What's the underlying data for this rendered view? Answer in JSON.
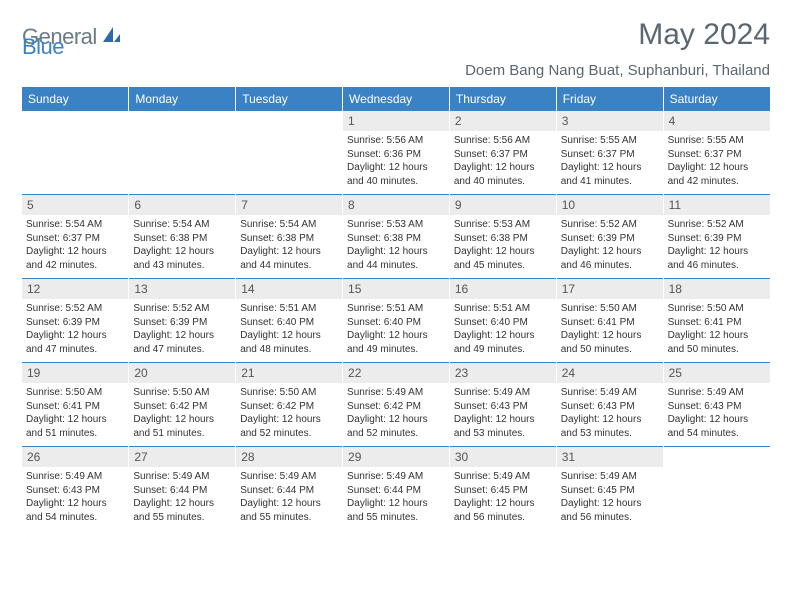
{
  "brand": {
    "part1": "General",
    "part2": "Blue"
  },
  "title": "May 2024",
  "location": "Doem Bang Nang Buat, Suphanburi, Thailand",
  "colors": {
    "header_bg": "#3b82c4",
    "header_text": "#ffffff",
    "daynum_bg": "#ececec",
    "sep_line": "#3b82c4",
    "title_text": "#5a6670",
    "logo_gray": "#6b7a86",
    "logo_blue": "#3b82c4"
  },
  "day_names": [
    "Sunday",
    "Monday",
    "Tuesday",
    "Wednesday",
    "Thursday",
    "Friday",
    "Saturday"
  ],
  "weeks": [
    [
      null,
      null,
      null,
      {
        "n": "1",
        "sr": "5:56 AM",
        "ss": "6:36 PM",
        "dl": "12 hours and 40 minutes."
      },
      {
        "n": "2",
        "sr": "5:56 AM",
        "ss": "6:37 PM",
        "dl": "12 hours and 40 minutes."
      },
      {
        "n": "3",
        "sr": "5:55 AM",
        "ss": "6:37 PM",
        "dl": "12 hours and 41 minutes."
      },
      {
        "n": "4",
        "sr": "5:55 AM",
        "ss": "6:37 PM",
        "dl": "12 hours and 42 minutes."
      }
    ],
    [
      {
        "n": "5",
        "sr": "5:54 AM",
        "ss": "6:37 PM",
        "dl": "12 hours and 42 minutes."
      },
      {
        "n": "6",
        "sr": "5:54 AM",
        "ss": "6:38 PM",
        "dl": "12 hours and 43 minutes."
      },
      {
        "n": "7",
        "sr": "5:54 AM",
        "ss": "6:38 PM",
        "dl": "12 hours and 44 minutes."
      },
      {
        "n": "8",
        "sr": "5:53 AM",
        "ss": "6:38 PM",
        "dl": "12 hours and 44 minutes."
      },
      {
        "n": "9",
        "sr": "5:53 AM",
        "ss": "6:38 PM",
        "dl": "12 hours and 45 minutes."
      },
      {
        "n": "10",
        "sr": "5:52 AM",
        "ss": "6:39 PM",
        "dl": "12 hours and 46 minutes."
      },
      {
        "n": "11",
        "sr": "5:52 AM",
        "ss": "6:39 PM",
        "dl": "12 hours and 46 minutes."
      }
    ],
    [
      {
        "n": "12",
        "sr": "5:52 AM",
        "ss": "6:39 PM",
        "dl": "12 hours and 47 minutes."
      },
      {
        "n": "13",
        "sr": "5:52 AM",
        "ss": "6:39 PM",
        "dl": "12 hours and 47 minutes."
      },
      {
        "n": "14",
        "sr": "5:51 AM",
        "ss": "6:40 PM",
        "dl": "12 hours and 48 minutes."
      },
      {
        "n": "15",
        "sr": "5:51 AM",
        "ss": "6:40 PM",
        "dl": "12 hours and 49 minutes."
      },
      {
        "n": "16",
        "sr": "5:51 AM",
        "ss": "6:40 PM",
        "dl": "12 hours and 49 minutes."
      },
      {
        "n": "17",
        "sr": "5:50 AM",
        "ss": "6:41 PM",
        "dl": "12 hours and 50 minutes."
      },
      {
        "n": "18",
        "sr": "5:50 AM",
        "ss": "6:41 PM",
        "dl": "12 hours and 50 minutes."
      }
    ],
    [
      {
        "n": "19",
        "sr": "5:50 AM",
        "ss": "6:41 PM",
        "dl": "12 hours and 51 minutes."
      },
      {
        "n": "20",
        "sr": "5:50 AM",
        "ss": "6:42 PM",
        "dl": "12 hours and 51 minutes."
      },
      {
        "n": "21",
        "sr": "5:50 AM",
        "ss": "6:42 PM",
        "dl": "12 hours and 52 minutes."
      },
      {
        "n": "22",
        "sr": "5:49 AM",
        "ss": "6:42 PM",
        "dl": "12 hours and 52 minutes."
      },
      {
        "n": "23",
        "sr": "5:49 AM",
        "ss": "6:43 PM",
        "dl": "12 hours and 53 minutes."
      },
      {
        "n": "24",
        "sr": "5:49 AM",
        "ss": "6:43 PM",
        "dl": "12 hours and 53 minutes."
      },
      {
        "n": "25",
        "sr": "5:49 AM",
        "ss": "6:43 PM",
        "dl": "12 hours and 54 minutes."
      }
    ],
    [
      {
        "n": "26",
        "sr": "5:49 AM",
        "ss": "6:43 PM",
        "dl": "12 hours and 54 minutes."
      },
      {
        "n": "27",
        "sr": "5:49 AM",
        "ss": "6:44 PM",
        "dl": "12 hours and 55 minutes."
      },
      {
        "n": "28",
        "sr": "5:49 AM",
        "ss": "6:44 PM",
        "dl": "12 hours and 55 minutes."
      },
      {
        "n": "29",
        "sr": "5:49 AM",
        "ss": "6:44 PM",
        "dl": "12 hours and 55 minutes."
      },
      {
        "n": "30",
        "sr": "5:49 AM",
        "ss": "6:45 PM",
        "dl": "12 hours and 56 minutes."
      },
      {
        "n": "31",
        "sr": "5:49 AM",
        "ss": "6:45 PM",
        "dl": "12 hours and 56 minutes."
      },
      null
    ]
  ],
  "labels": {
    "sunrise": "Sunrise:",
    "sunset": "Sunset:",
    "daylight": "Daylight:"
  }
}
